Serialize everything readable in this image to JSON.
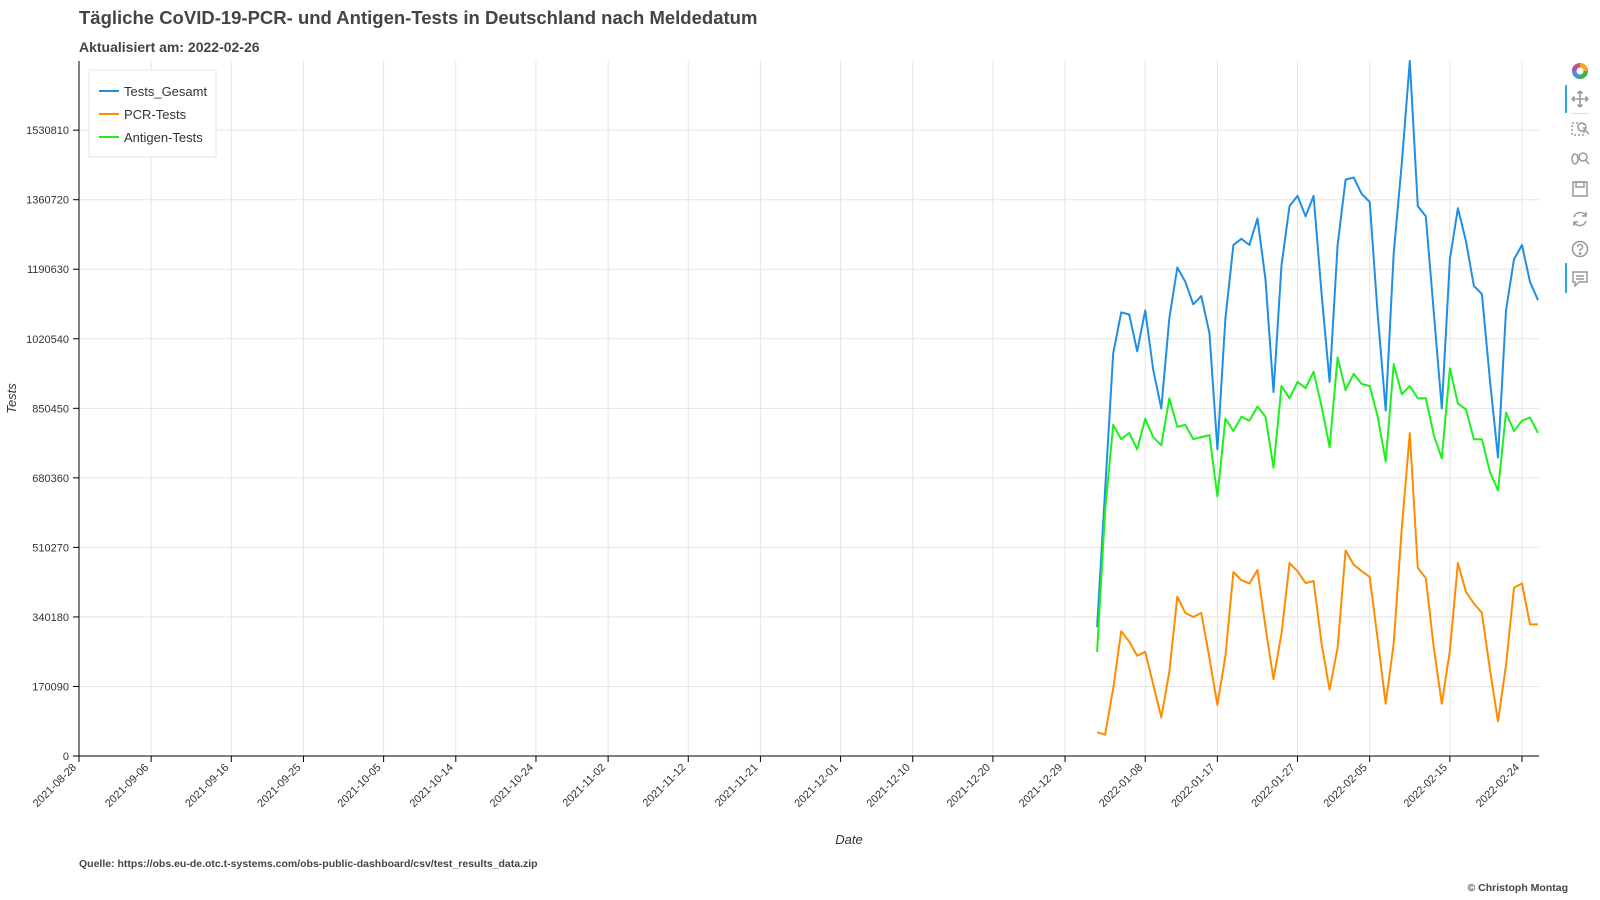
{
  "header": {
    "title": "Tägliche CoVID-19-PCR- und Antigen-Tests in Deutschland nach Meldedatum",
    "subtitle": "Aktualisiert am: 2022-02-26"
  },
  "footer": {
    "source": "Quelle: https://obs.eu-de.otc.t-systems.com/obs-public-dashboard/csv/test_results_data.zip",
    "copyright": "© Christoph Montag"
  },
  "toolbar": {
    "icons": [
      "bokeh-logo-icon",
      "pan-icon",
      "box-zoom-icon",
      "wheel-zoom-icon",
      "save-icon",
      "reset-icon",
      "help-icon",
      "hover-icon"
    ]
  },
  "chart_data": {
    "type": "line",
    "xlabel": "Date",
    "ylabel": "Tests",
    "xlim": [
      "2021-08-28",
      "2022-02-26"
    ],
    "ylim": [
      0,
      1700000
    ],
    "x_ticks": [
      "2021-08-28",
      "2021-09-06",
      "2021-09-16",
      "2021-09-25",
      "2021-10-05",
      "2021-10-14",
      "2021-10-24",
      "2021-11-02",
      "2021-11-12",
      "2021-11-21",
      "2021-12-01",
      "2021-12-10",
      "2021-12-20",
      "2021-12-29",
      "2022-01-08",
      "2022-01-17",
      "2022-01-27",
      "2022-02-05",
      "2022-02-15",
      "2022-02-24"
    ],
    "y_ticks": [
      0,
      170090,
      340180,
      510270,
      680360,
      850450,
      1020540,
      1190630,
      1360720,
      1530810
    ],
    "grid": true,
    "legend_position": "top-left",
    "dates": [
      "2022-01-02",
      "2022-01-03",
      "2022-01-04",
      "2022-01-05",
      "2022-01-06",
      "2022-01-07",
      "2022-01-08",
      "2022-01-09",
      "2022-01-10",
      "2022-01-11",
      "2022-01-12",
      "2022-01-13",
      "2022-01-14",
      "2022-01-15",
      "2022-01-16",
      "2022-01-17",
      "2022-01-18",
      "2022-01-19",
      "2022-01-20",
      "2022-01-21",
      "2022-01-22",
      "2022-01-23",
      "2022-01-24",
      "2022-01-25",
      "2022-01-26",
      "2022-01-27",
      "2022-01-28",
      "2022-01-29",
      "2022-01-30",
      "2022-01-31",
      "2022-02-01",
      "2022-02-02",
      "2022-02-03",
      "2022-02-04",
      "2022-02-05",
      "2022-02-06",
      "2022-02-07",
      "2022-02-08",
      "2022-02-09",
      "2022-02-10",
      "2022-02-11",
      "2022-02-12",
      "2022-02-13",
      "2022-02-14",
      "2022-02-15",
      "2022-02-16",
      "2022-02-17",
      "2022-02-18",
      "2022-02-19",
      "2022-02-20",
      "2022-02-21",
      "2022-02-22",
      "2022-02-23",
      "2022-02-24",
      "2022-02-25",
      "2022-02-26"
    ],
    "series": [
      {
        "name": "Tests_Gesamt",
        "color": "#1f8fe6",
        "values": [
          315000,
          650000,
          985000,
          1085000,
          1080000,
          990000,
          1090000,
          945000,
          850000,
          1070000,
          1195000,
          1160000,
          1105000,
          1125000,
          1035000,
          750000,
          1070000,
          1250000,
          1265000,
          1250000,
          1315000,
          1165000,
          890000,
          1200000,
          1345000,
          1370000,
          1320000,
          1370000,
          1130000,
          915000,
          1250000,
          1410000,
          1415000,
          1375000,
          1355000,
          1080000,
          845000,
          1230000,
          1450000,
          1700000,
          1345000,
          1320000,
          1085000,
          850000,
          1215000,
          1340000,
          1260000,
          1150000,
          1130000,
          920000,
          730000,
          1090000,
          1215000,
          1250000,
          1160000,
          1115000
        ]
      },
      {
        "name": "PCR-Tests",
        "color": "#ff8c00",
        "values": [
          58000,
          52000,
          165000,
          305000,
          280000,
          245000,
          255000,
          175000,
          95000,
          205000,
          390000,
          350000,
          340000,
          350000,
          240000,
          125000,
          245000,
          450000,
          430000,
          422000,
          455000,
          315000,
          188000,
          300000,
          472000,
          452000,
          423000,
          428000,
          275000,
          162000,
          265000,
          503000,
          468000,
          452000,
          438000,
          285000,
          128000,
          275000,
          558000,
          790000,
          460000,
          435000,
          265000,
          128000,
          258000,
          472000,
          402000,
          373000,
          350000,
          212000,
          85000,
          222000,
          412000,
          422000,
          322000,
          322000
        ]
      },
      {
        "name": "Antigen-Tests",
        "color": "#1ef01e",
        "values": [
          255000,
          600000,
          810000,
          775000,
          790000,
          750000,
          825000,
          780000,
          760000,
          875000,
          805000,
          810000,
          775000,
          780000,
          785000,
          635000,
          825000,
          795000,
          830000,
          820000,
          855000,
          830000,
          705000,
          905000,
          875000,
          915000,
          900000,
          940000,
          855000,
          755000,
          975000,
          895000,
          935000,
          910000,
          905000,
          830000,
          720000,
          958000,
          885000,
          905000,
          875000,
          875000,
          785000,
          728000,
          948000,
          862000,
          848000,
          775000,
          775000,
          695000,
          650000,
          840000,
          795000,
          820000,
          828000,
          790000
        ]
      }
    ]
  }
}
